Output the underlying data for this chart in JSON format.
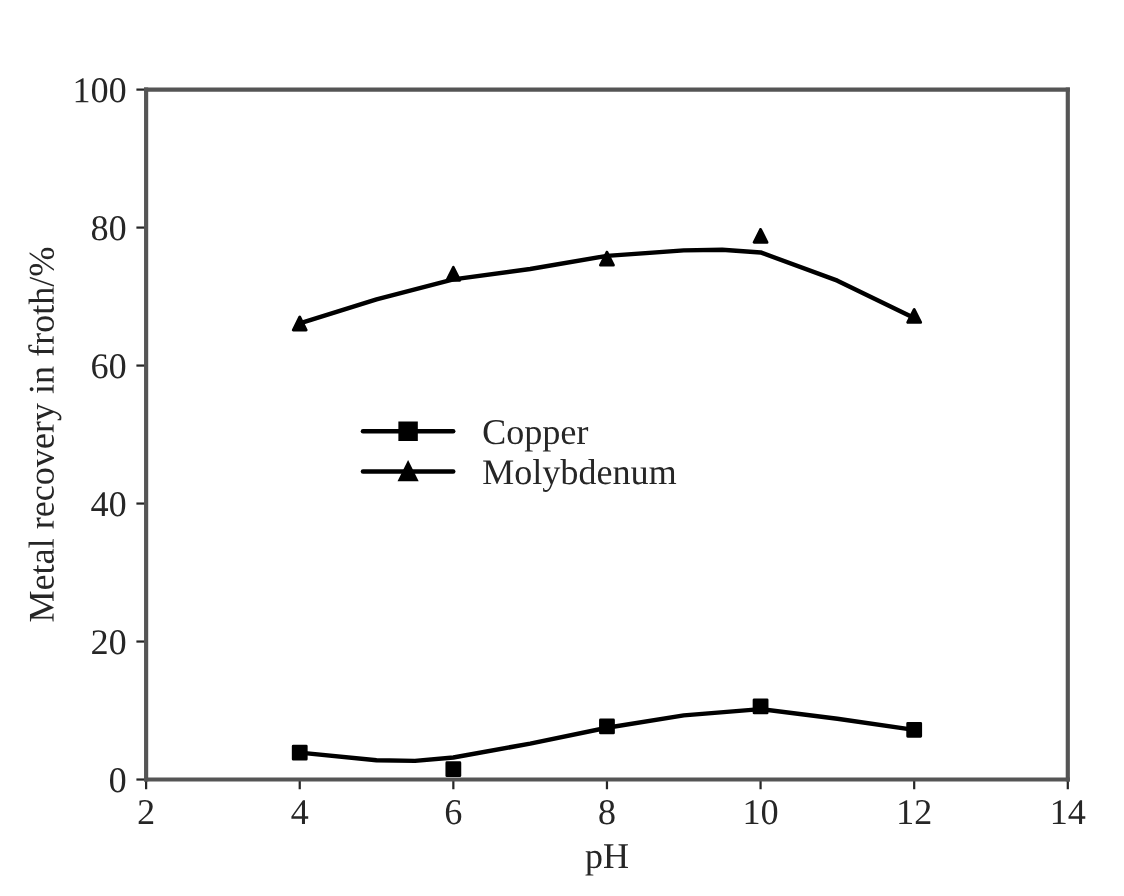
{
  "chart_data": {
    "type": "scatter",
    "xlabel": "pH",
    "ylabel": "Metal recovery in froth/%",
    "xlim": [
      2,
      14
    ],
    "ylim": [
      0,
      100
    ],
    "xticks": [
      2,
      4,
      6,
      8,
      10,
      12,
      14
    ],
    "yticks": [
      0,
      20,
      40,
      60,
      80,
      100
    ],
    "grid": false,
    "legend": "left",
    "series": [
      {
        "name": "Copper",
        "color": "#000000",
        "marker": "square",
        "x": [
          4,
          6,
          8,
          10,
          12
        ],
        "values": [
          3.9,
          1.5,
          7.7,
          10.6,
          7.2
        ]
      },
      {
        "name": "Molybdenum",
        "color": "#000000",
        "marker": "triangle",
        "x": [
          4,
          6,
          8,
          10,
          12
        ],
        "values": [
          66.1,
          73.3,
          75.5,
          78.8,
          67.2
        ]
      },
      {
        "type": "line",
        "color": "#000000",
        "marker": "none",
        "line_style": "solid",
        "x": [
          4,
          5,
          5.5,
          6,
          7,
          8,
          9,
          10,
          11,
          12
        ],
        "values": [
          3.9,
          2.8,
          2.7,
          3.2,
          5.2,
          7.5,
          9.3,
          10.2,
          8.8,
          7.2
        ]
      },
      {
        "type": "line",
        "color": "#000000",
        "marker": "none",
        "line_style": "solid",
        "x": [
          4,
          5,
          6,
          7,
          8,
          9,
          9.5,
          10,
          11,
          12
        ],
        "values": [
          66.1,
          69.6,
          72.5,
          74,
          75.9,
          76.7,
          76.8,
          76.4,
          72.3,
          66.9
        ]
      }
    ]
  }
}
